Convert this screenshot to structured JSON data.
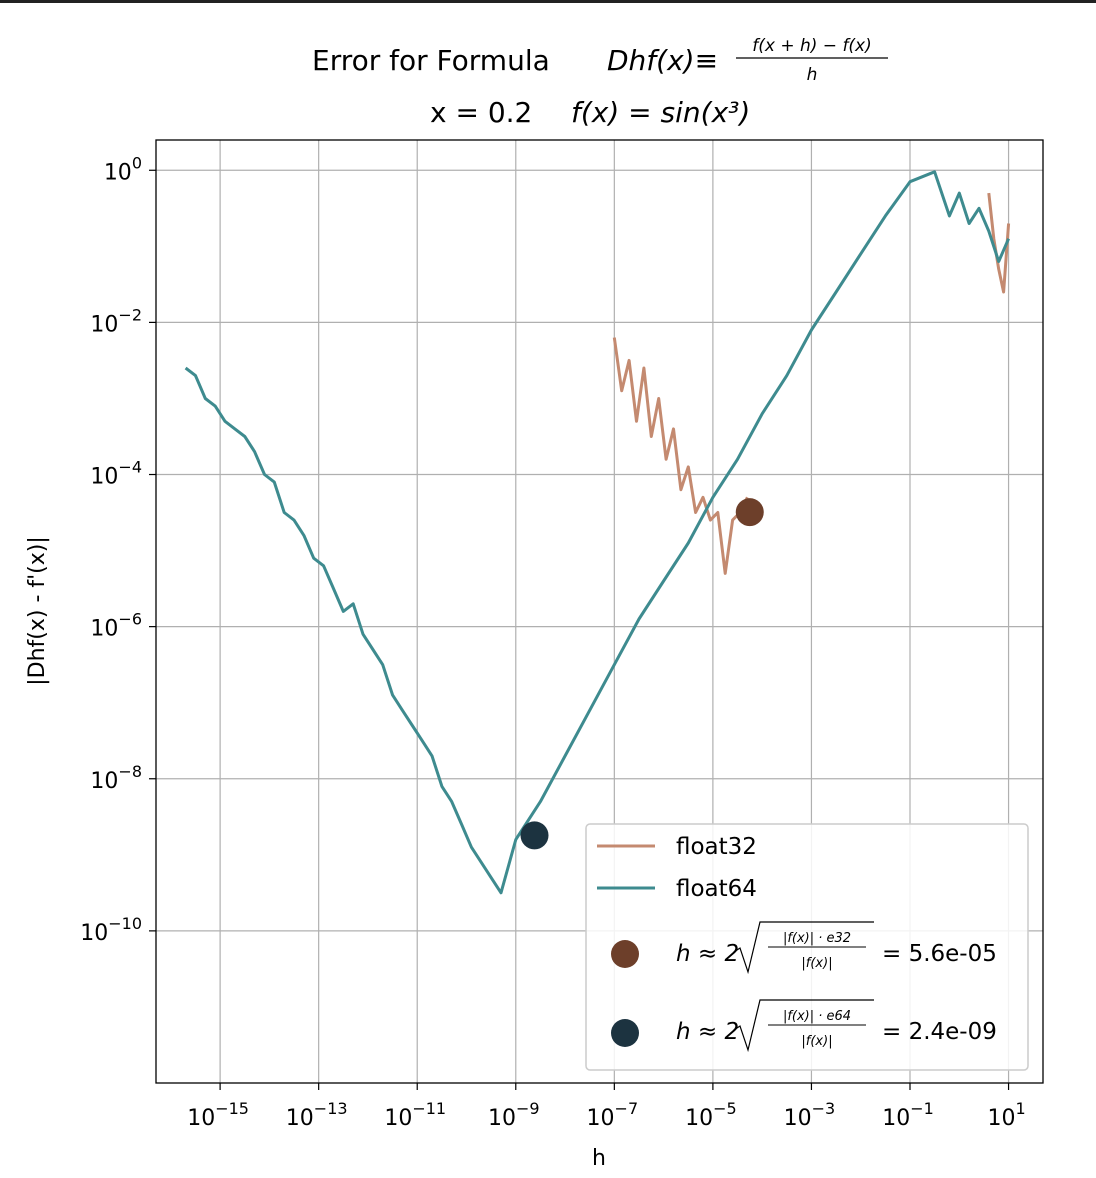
{
  "chart_data": {
    "type": "line",
    "title": {
      "line1_prefix": "Error for Formula",
      "line1_lhs": "Dhf(x)≡",
      "line1_fraction_numerator": "f(x + h) − f(x)",
      "line1_fraction_denominator": "h",
      "line2_x": "x = 0.2",
      "line2_fx": "f(x) = sin(x³)"
    },
    "xlabel": "h",
    "ylabel": "|Dhf(x) - f'(x)|",
    "xscale": "log",
    "yscale": "log",
    "xlim": [
      5e-17,
      50
    ],
    "ylim": [
      1e-12,
      2.5
    ],
    "x_ticks": [
      -15,
      -13,
      -11,
      -9,
      -7,
      -5,
      -3,
      -1,
      1
    ],
    "y_ticks": [
      0,
      -2,
      -4,
      -6,
      -8,
      -10
    ],
    "grid": true,
    "legend_placement": "lower-right",
    "series": [
      {
        "name": "float32",
        "color": "#c48a70",
        "segments": [
          {
            "x_log": [
              -7,
              -6.85,
              -6.7,
              -6.55,
              -6.4,
              -6.25,
              -6.1,
              -5.95,
              -5.8,
              -5.65,
              -5.5,
              -5.35,
              -5.2,
              -5.05,
              -4.9,
              -4.75,
              -4.6,
              -4.45,
              -4.3
            ],
            "y_log": [
              -2.2,
              -2.9,
              -2.5,
              -3.3,
              -2.6,
              -3.5,
              -3.0,
              -3.8,
              -3.4,
              -4.2,
              -3.9,
              -4.5,
              -4.3,
              -4.6,
              -4.5,
              -5.3,
              -4.6,
              -4.5,
              -4.3
            ]
          },
          {
            "x_log": [
              0.6,
              0.7,
              0.8,
              0.9,
              1.0
            ],
            "y_log": [
              -0.3,
              -0.9,
              -1.3,
              -1.6,
              -0.7
            ]
          }
        ]
      },
      {
        "name": "float64",
        "color": "#3e8b8f",
        "x_log": [
          -15.7,
          -15.5,
          -15.3,
          -15.1,
          -14.9,
          -14.7,
          -14.5,
          -14.3,
          -14.1,
          -13.9,
          -13.7,
          -13.5,
          -13.3,
          -13.1,
          -12.9,
          -12.7,
          -12.5,
          -12.3,
          -12.1,
          -11.9,
          -11.7,
          -11.5,
          -11.3,
          -11.1,
          -10.9,
          -10.7,
          -10.5,
          -10.3,
          -10.1,
          -9.9,
          -9.7,
          -9.5,
          -9.3,
          -9,
          -8.5,
          -8,
          -7.5,
          -7,
          -6.5,
          -6,
          -5.5,
          -5,
          -4.5,
          -4,
          -3.5,
          -3,
          -2.5,
          -2,
          -1.5,
          -1,
          -0.5,
          -0.2,
          0,
          0.2,
          0.4,
          0.6,
          0.8,
          1.0
        ],
        "y_log": [
          -2.6,
          -2.7,
          -3.0,
          -3.1,
          -3.3,
          -3.4,
          -3.5,
          -3.7,
          -4.0,
          -4.1,
          -4.5,
          -4.6,
          -4.8,
          -5.1,
          -5.2,
          -5.5,
          -5.8,
          -5.7,
          -6.1,
          -6.3,
          -6.5,
          -6.9,
          -7.1,
          -7.3,
          -7.5,
          -7.7,
          -8.1,
          -8.3,
          -8.6,
          -8.9,
          -9.1,
          -9.3,
          -9.5,
          -8.8,
          -8.3,
          -7.7,
          -7.1,
          -6.5,
          -5.9,
          -5.4,
          -4.9,
          -4.3,
          -3.8,
          -3.2,
          -2.7,
          -2.1,
          -1.6,
          -1.1,
          -0.6,
          -0.15,
          -0.02,
          -0.6,
          -0.3,
          -0.7,
          -0.5,
          -0.8,
          -1.2,
          -0.9
        ]
      }
    ],
    "markers": [
      {
        "name": "float32 optimum",
        "color": "#6d3f2a",
        "h": 5.6e-05,
        "y": 3.2e-05,
        "legend_prefix": "h ≈ 2",
        "legend_numerator": "|f(x)| · e32",
        "legend_denominator": "|f(x)|",
        "legend_value": "= 5.6e-05"
      },
      {
        "name": "float64 optimum",
        "color": "#1c3340",
        "h": 2.4e-09,
        "y": 1.8e-09,
        "legend_prefix": "h ≈ 2",
        "legend_numerator": "|f(x)| · e64",
        "legend_denominator": "|f(x)|",
        "legend_value": "= 2.4e-09"
      }
    ]
  }
}
